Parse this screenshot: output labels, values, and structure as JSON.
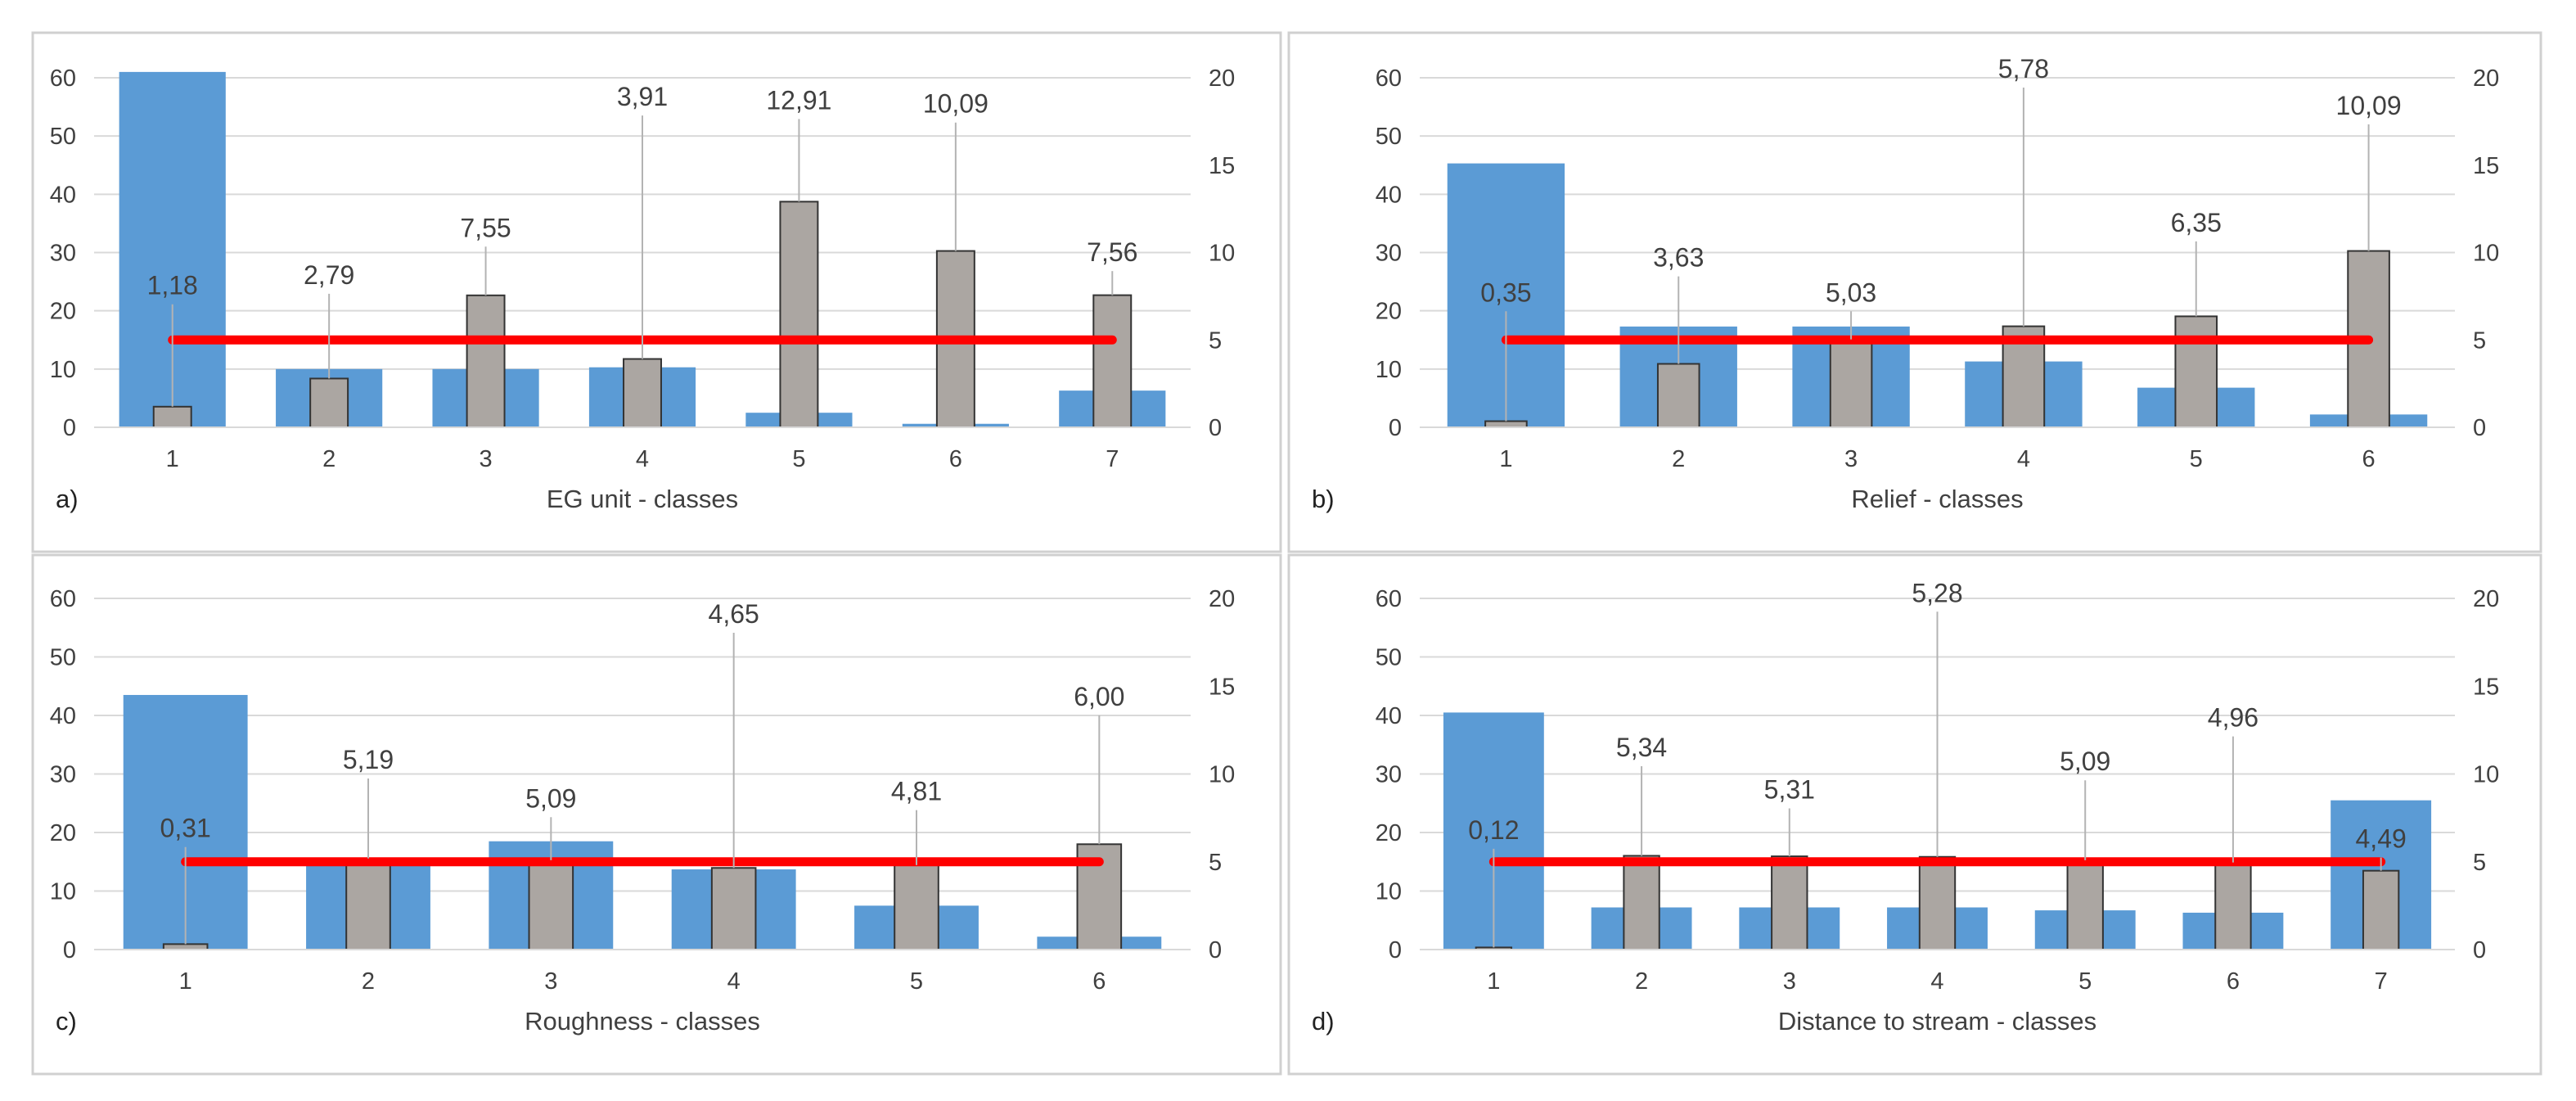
{
  "colors": {
    "area_bar": "#5b9bd5",
    "ratio_bar": "#aba6a2",
    "ratio_bar_stroke": "#333333",
    "reference_line": "#ff0000",
    "leader_line": "#b3b3b3",
    "grid": "#d9d9d9",
    "panel_border": "#d0d0d0",
    "text": "#404040"
  },
  "chart_data": [
    {
      "panel": "a)",
      "type": "bar",
      "xlabel": "EG unit - classes",
      "categories": [
        "1",
        "2",
        "3",
        "4",
        "5",
        "6",
        "7"
      ],
      "left_axis": {
        "ylim": [
          0,
          60
        ],
        "ticks": [
          "0",
          "10",
          "20",
          "30",
          "40",
          "50",
          "60"
        ]
      },
      "right_axis": {
        "ylim": [
          0,
          20
        ],
        "ticks": [
          "0",
          "5",
          "10",
          "15",
          "20"
        ]
      },
      "series": [
        {
          "axis": "left",
          "color": "#5b9bd5",
          "values": [
            61,
            10,
            10,
            10.3,
            2.5,
            0.6,
            6.3
          ]
        },
        {
          "axis": "right",
          "color": "#aba6a2",
          "values": [
            1.18,
            2.79,
            7.55,
            3.91,
            12.91,
            10.09,
            7.56
          ]
        }
      ],
      "reference_line": {
        "axis": "right",
        "value": 5
      },
      "data_labels": [
        "1,18",
        "2,79",
        "7,55",
        "3,91",
        "12,91",
        "10,09",
        "7,56"
      ],
      "label_y": [
        7.6,
        8.2,
        10.9,
        18.4,
        18.2,
        18.0,
        9.5
      ],
      "grid": true
    },
    {
      "panel": "b)",
      "type": "bar",
      "xlabel": "Relief - classes",
      "categories": [
        "1",
        "2",
        "3",
        "4",
        "5",
        "6"
      ],
      "left_axis": {
        "ylim": [
          0,
          60
        ],
        "ticks": [
          "0",
          "10",
          "20",
          "30",
          "40",
          "50",
          "60"
        ]
      },
      "right_axis": {
        "ylim": [
          0,
          20
        ],
        "ticks": [
          "0",
          "5",
          "10",
          "15",
          "20"
        ]
      },
      "series": [
        {
          "axis": "left",
          "color": "#5b9bd5",
          "values": [
            45.3,
            17.3,
            17.3,
            11.3,
            6.8,
            2.2
          ]
        },
        {
          "axis": "right",
          "color": "#aba6a2",
          "values": [
            0.35,
            3.63,
            5.03,
            5.78,
            6.35,
            10.09
          ]
        }
      ],
      "reference_line": {
        "axis": "right",
        "value": 5
      },
      "data_labels": [
        "0,35",
        "3,63",
        "5,03",
        "5,78",
        "6,35",
        "10,09"
      ],
      "label_y": [
        7.2,
        9.2,
        7.2,
        20.0,
        11.2,
        17.9
      ],
      "grid": true
    },
    {
      "panel": "c)",
      "type": "bar",
      "xlabel": "Roughness - classes",
      "categories": [
        "1",
        "2",
        "3",
        "4",
        "5",
        "6"
      ],
      "left_axis": {
        "ylim": [
          0,
          60
        ],
        "ticks": [
          "0",
          "10",
          "20",
          "30",
          "40",
          "50",
          "60"
        ]
      },
      "right_axis": {
        "ylim": [
          0,
          20
        ],
        "ticks": [
          "0",
          "5",
          "10",
          "15",
          "20"
        ]
      },
      "series": [
        {
          "axis": "left",
          "color": "#5b9bd5",
          "values": [
            43.5,
            15,
            18.5,
            13.7,
            7.5,
            2.2
          ]
        },
        {
          "axis": "right",
          "color": "#aba6a2",
          "values": [
            0.31,
            5.19,
            5.09,
            4.65,
            4.81,
            6.0
          ]
        }
      ],
      "reference_line": {
        "axis": "right",
        "value": 5
      },
      "data_labels": [
        "0,31",
        "5,19",
        "5,09",
        "4,65",
        "4,81",
        "6,00"
      ],
      "label_y": [
        6.4,
        10.3,
        8.1,
        18.6,
        8.5,
        13.9
      ],
      "grid": true
    },
    {
      "panel": "d)",
      "type": "bar",
      "xlabel": "Distance to stream - classes",
      "categories": [
        "1",
        "2",
        "3",
        "4",
        "5",
        "6",
        "7"
      ],
      "left_axis": {
        "ylim": [
          0,
          60
        ],
        "ticks": [
          "0",
          "10",
          "20",
          "30",
          "40",
          "50",
          "60"
        ]
      },
      "right_axis": {
        "ylim": [
          0,
          20
        ],
        "ticks": [
          "0",
          "5",
          "10",
          "15",
          "20"
        ]
      },
      "series": [
        {
          "axis": "left",
          "color": "#5b9bd5",
          "values": [
            40.5,
            7.2,
            7.2,
            7.2,
            6.7,
            6.3,
            25.5
          ]
        },
        {
          "axis": "right",
          "color": "#aba6a2",
          "values": [
            0.12,
            5.34,
            5.31,
            5.28,
            5.09,
            4.96,
            4.49
          ]
        }
      ],
      "reference_line": {
        "axis": "right",
        "value": 5
      },
      "data_labels": [
        "0,12",
        "5,34",
        "5,31",
        "5,28",
        "5,09",
        "4,96",
        "4,49"
      ],
      "label_y": [
        6.3,
        11.0,
        8.6,
        19.8,
        10.2,
        12.7,
        5.8
      ],
      "grid": true
    }
  ]
}
